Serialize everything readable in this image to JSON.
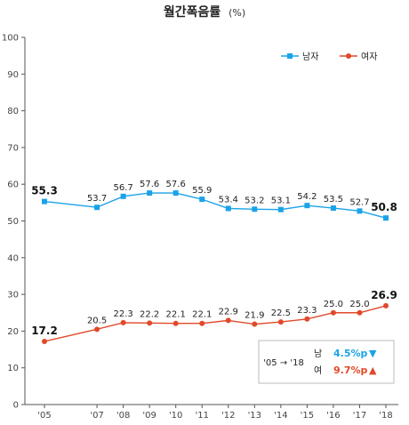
{
  "chart_data": {
    "type": "line",
    "title": "월간폭음률",
    "unit": "(%)",
    "x": [
      "'05",
      "'07",
      "'08",
      "'09",
      "'10",
      "'11",
      "'12",
      "'13",
      "'14",
      "'15",
      "'16",
      "'17",
      "'18"
    ],
    "x_years": [
      2005,
      2007,
      2008,
      2009,
      2010,
      2011,
      2012,
      2013,
      2014,
      2015,
      2016,
      2017,
      2018
    ],
    "ylim": [
      0,
      100
    ],
    "yticks": [
      0,
      10,
      20,
      30,
      40,
      50,
      60,
      70,
      80,
      90,
      100
    ],
    "series": [
      {
        "name": "남자",
        "color": "#1aa3e8",
        "marker": "square",
        "values": [
          55.3,
          53.7,
          56.7,
          57.6,
          57.6,
          55.9,
          53.4,
          53.2,
          53.1,
          54.2,
          53.5,
          52.7,
          50.8
        ],
        "labels": [
          "55.3",
          "53.7",
          "56.7",
          "57.6",
          "57.6",
          "55.9",
          "53.4",
          "53.2",
          "53.1",
          "54.2",
          "53.5",
          "52.7",
          "50.8"
        ]
      },
      {
        "name": "여자",
        "color": "#e0492a",
        "marker": "circle",
        "values": [
          17.2,
          20.5,
          22.3,
          22.2,
          22.1,
          22.1,
          22.9,
          21.9,
          22.5,
          23.3,
          25.0,
          25.0,
          26.9
        ],
        "labels": [
          "17.2",
          "20.5",
          "22.3",
          "22.2",
          "22.1",
          "22.1",
          "22.9",
          "21.9",
          "22.5",
          "23.3",
          "25.0",
          "25.0",
          "26.9"
        ]
      }
    ],
    "legend_position": "top-right",
    "grid": false,
    "annotation": {
      "period": "'05 → '18",
      "rows": [
        {
          "label": "남",
          "change": "4.5%p",
          "arrow": "▼",
          "color": "#1aa3e8"
        },
        {
          "label": "여",
          "change": "9.7%p",
          "arrow": "▲",
          "color": "#e0492a"
        }
      ]
    }
  }
}
